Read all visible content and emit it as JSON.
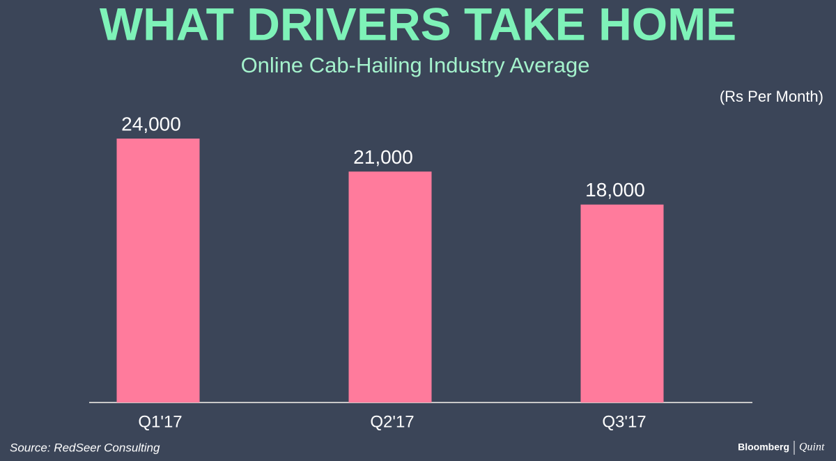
{
  "chart_data": {
    "type": "bar",
    "title": "WHAT DRIVERS TAKE HOME",
    "subtitle": "Online Cab-Hailing Industry Average",
    "unit_label": "(Rs Per Month)",
    "categories": [
      "Q1'17",
      "Q2'17",
      "Q3'17"
    ],
    "values": [
      24000,
      21000,
      18000
    ],
    "value_labels": [
      "24,000",
      "21,000",
      "18,000"
    ],
    "color": "#ff7b9c",
    "source": "Source: RedSeer Consulting",
    "brand": "Bloomberg",
    "brand_second": "Quint"
  }
}
